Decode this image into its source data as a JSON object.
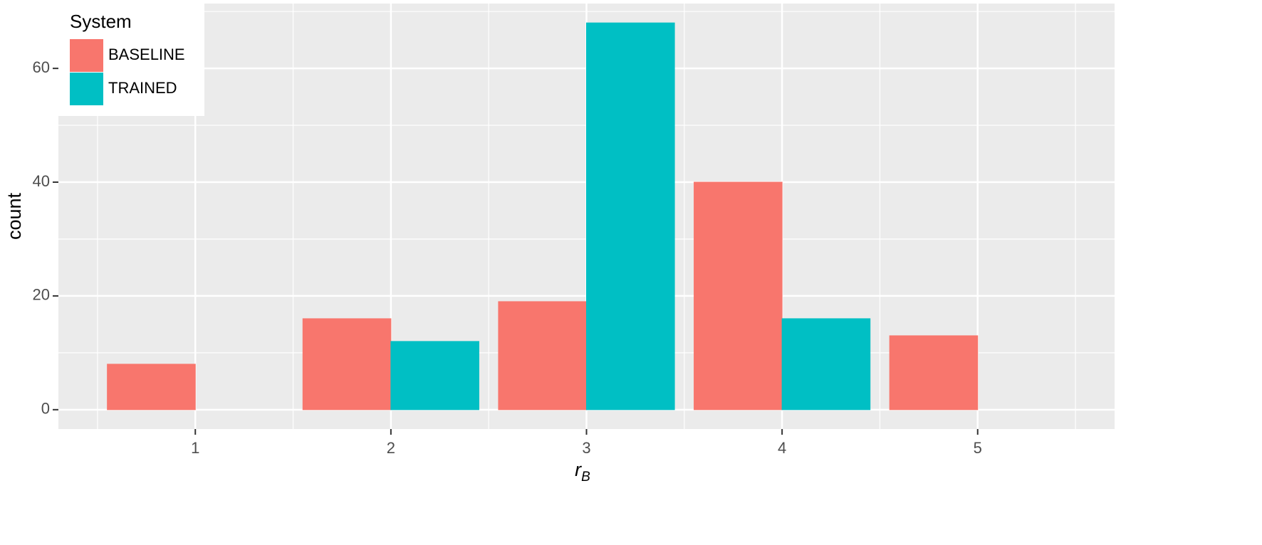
{
  "chart_data": {
    "type": "bar",
    "x": [
      1,
      2,
      3,
      4,
      5
    ],
    "xticks": [
      1,
      2,
      3,
      4,
      5
    ],
    "xminor_ticks": [
      0.5,
      1.5,
      2.5,
      3.5,
      4.5,
      5.5
    ],
    "xlim": [
      0.3,
      5.7
    ],
    "series": [
      {
        "name": "BASELINE",
        "color": "#F8766D",
        "values": [
          8,
          16,
          19,
          40,
          13
        ]
      },
      {
        "name": "TRAINED",
        "color": "#00BFC4",
        "values": [
          0,
          12,
          68,
          16,
          0
        ]
      }
    ],
    "ylim": [
      -3.4,
      71.4
    ],
    "yticks": [
      0,
      20,
      40,
      60
    ],
    "yminor_ticks": [
      10,
      30,
      50,
      70
    ],
    "grid": true,
    "ylabel": "count",
    "xlabel": "r",
    "xlabel_subscript": "B",
    "legend_title": "System",
    "legend_position": "top-left"
  }
}
